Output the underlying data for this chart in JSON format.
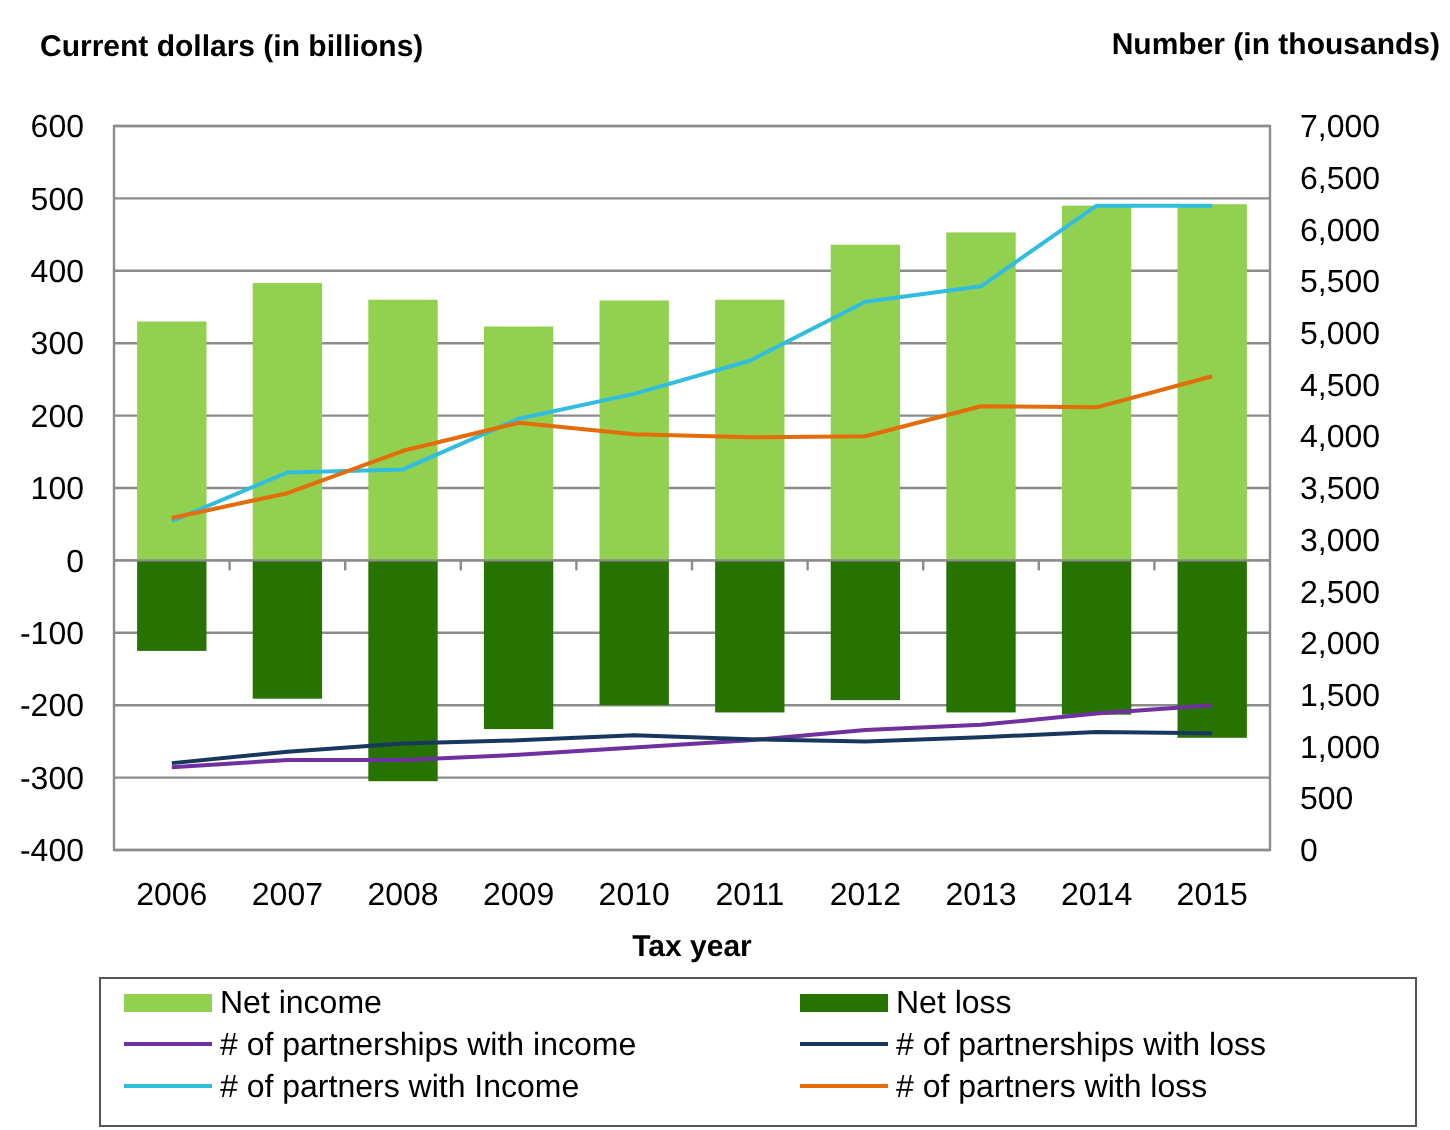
{
  "chart_data": {
    "type": "bar",
    "stacked": true,
    "ylabel": "Current dollars (in billions)",
    "y2label": "Number (in thousands)",
    "xlabel": "Tax year",
    "categories": [
      "2006",
      "2007",
      "2008",
      "2009",
      "2010",
      "2011",
      "2012",
      "2013",
      "2014",
      "2015"
    ],
    "series": [
      {
        "name": "Net income",
        "color": "#92d050",
        "values": [
          330,
          383,
          360,
          323,
          359,
          360,
          436,
          453,
          490,
          492
        ]
      },
      {
        "name": "Net loss",
        "color": "#267300",
        "values": [
          -125,
          -191,
          -305,
          -233,
          -200,
          -210,
          -193,
          -210,
          -213,
          -245
        ]
      },
      {
        "name": "# of partnerships with income",
        "type": "line",
        "axis": "y2",
        "color": "#7030a0",
        "values": [
          800,
          870,
          870,
          920,
          990,
          1060,
          1160,
          1210,
          1320,
          1400
        ]
      },
      {
        "name": "# of partnerships with loss",
        "type": "line",
        "axis": "y2",
        "color": "#17375e",
        "values": [
          840,
          950,
          1030,
          1060,
          1110,
          1070,
          1050,
          1090,
          1140,
          1130
        ]
      },
      {
        "name": "# of partners with Income",
        "type": "line",
        "axis": "y2",
        "color": "#31bde0",
        "values": [
          3180,
          3650,
          3680,
          4170,
          4410,
          4730,
          5300,
          5450,
          6230,
          6230
        ]
      },
      {
        "name": "# of partners with loss",
        "type": "line",
        "axis": "y2",
        "color": "#e46c0a",
        "values": [
          3210,
          3450,
          3860,
          4130,
          4020,
          3990,
          4000,
          4290,
          4280,
          4580
        ]
      }
    ],
    "ylim": [
      -400,
      600
    ],
    "yticks": [
      -400,
      -300,
      -200,
      -100,
      0,
      100,
      200,
      300,
      400,
      500,
      600
    ],
    "y2lim": [
      0,
      7000
    ],
    "y2ticks": [
      0,
      500,
      {
        "value": 1000,
        "label": "1,000"
      },
      {
        "value": 1500,
        "label": "1,500"
      },
      {
        "value": 2000,
        "label": "2,000"
      },
      {
        "value": 2500,
        "label": "2,500"
      },
      {
        "value": 3000,
        "label": "3,000"
      },
      {
        "value": 3500,
        "label": "3,500"
      },
      {
        "value": 4000,
        "label": "4,000"
      },
      {
        "value": 4500,
        "label": "4,500"
      },
      {
        "value": 5000,
        "label": "5,000"
      },
      {
        "value": 5500,
        "label": "5,500"
      },
      {
        "value": 6000,
        "label": "6,000"
      },
      {
        "value": 6500,
        "label": "6,500"
      },
      {
        "value": 7000,
        "label": "7,000"
      }
    ],
    "grid": "y",
    "legend": "bottom"
  }
}
